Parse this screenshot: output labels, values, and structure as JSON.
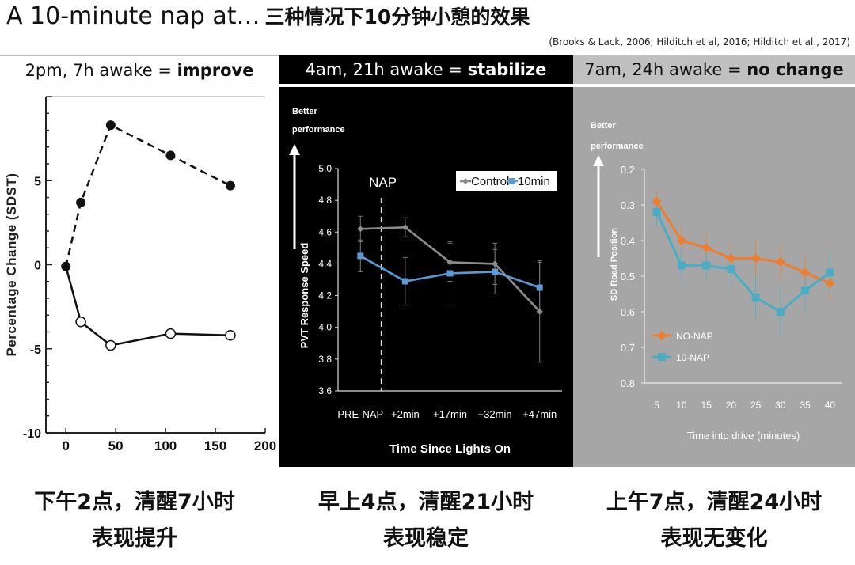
{
  "title": {
    "main": "A 10-minute nap at…",
    "zh": "三种情况下10分钟小憩的效果"
  },
  "references": "(Brooks & Lack, 2006; Hilditch et al, 2016; Hilditch et al., 2017)",
  "headers": [
    {
      "prefix": "2pm, 7h awake = ",
      "bold": "improve"
    },
    {
      "prefix": "4am, 21h awake = ",
      "bold": "stabilize"
    },
    {
      "prefix": "7am, 24h awake = ",
      "bold": "no change"
    }
  ],
  "captions": [
    {
      "line1": "下午2点，清醒7小时",
      "line2": "表现提升"
    },
    {
      "line1": "早上4点，清醒21小时",
      "line2": "表现稳定"
    },
    {
      "line1": "上午7点，清醒24小时",
      "line2": "表现无变化"
    }
  ],
  "chart_data": [
    {
      "type": "line",
      "title": "",
      "xlabel": "",
      "ylabel": "Percentage Change (SDST)",
      "xlim": [
        -20,
        200
      ],
      "ylim": [
        -10,
        10
      ],
      "xticks": [
        "0",
        "50",
        "100",
        "150",
        "200"
      ],
      "xtick_values": [
        0,
        50,
        100,
        150,
        200
      ],
      "yticks": [
        "-10",
        "-5",
        "0",
        "5"
      ],
      "ytick_values": [
        -10,
        -5,
        0,
        5
      ],
      "series": [
        {
          "style": "dashed-filled",
          "x": [
            0,
            15,
            45,
            105,
            165
          ],
          "y": [
            -0.1,
            3.7,
            8.3,
            6.5,
            4.7
          ]
        },
        {
          "style": "solid-open",
          "x": [
            15,
            45,
            105,
            165
          ],
          "y": [
            -3.4,
            -4.8,
            -4.1,
            -4.2
          ]
        }
      ],
      "solid_start": {
        "x": 0,
        "y": -0.1
      }
    },
    {
      "type": "line",
      "title": "",
      "xlabel": "Time Since Lights On",
      "ylabel": "PVT Response Speed",
      "annotation_top": "Better performance",
      "nap_label": "NAP",
      "categories": [
        "PRE-NAP",
        "+2min",
        "+17min",
        "+32min",
        "+47min"
      ],
      "ylim": [
        3.6,
        5.0
      ],
      "yticks": [
        "3.6",
        "3.8",
        "4.0",
        "4.2",
        "4.4",
        "4.6",
        "4.8",
        "5.0"
      ],
      "ytick_values": [
        3.6,
        3.8,
        4.0,
        4.2,
        4.4,
        4.6,
        4.8,
        5.0
      ],
      "legend_position": "top-right",
      "series": [
        {
          "name": "Control",
          "color": "#8c8c8c",
          "values": [
            4.62,
            4.63,
            4.41,
            4.4,
            4.1
          ],
          "errors": [
            0.08,
            0.06,
            0.12,
            0.13,
            0.32
          ]
        },
        {
          "name": "10min",
          "color": "#5b9bd5",
          "values": [
            4.45,
            4.29,
            4.34,
            4.35,
            4.25
          ],
          "errors": [
            0.1,
            0.15,
            0.2,
            0.14,
            0.16
          ]
        }
      ]
    },
    {
      "type": "line",
      "title": "",
      "xlabel": "Time into drive (minutes)",
      "ylabel": "SD Road Position",
      "annotation_top": "Better performance",
      "y_inverted": true,
      "x": [
        5,
        10,
        15,
        20,
        25,
        30,
        35,
        40
      ],
      "xticks": [
        "5",
        "10",
        "15",
        "20",
        "25",
        "30",
        "35",
        "40"
      ],
      "ylim": [
        0.2,
        0.8
      ],
      "yticks": [
        "0.2",
        "0.3",
        "0.4",
        "0.5",
        "0.6",
        "0.7",
        "0.8"
      ],
      "ytick_values": [
        0.2,
        0.3,
        0.4,
        0.5,
        0.6,
        0.7,
        0.8
      ],
      "legend_position": "bottom-left",
      "series": [
        {
          "name": "NO-NAP",
          "color": "#ed7d31",
          "values": [
            0.29,
            0.4,
            0.42,
            0.45,
            0.45,
            0.46,
            0.49,
            0.52
          ],
          "errors": [
            0.03,
            0.04,
            0.04,
            0.04,
            0.05,
            0.05,
            0.05,
            0.05
          ]
        },
        {
          "name": "10-NAP",
          "color": "#4bacc6",
          "values": [
            0.32,
            0.47,
            0.47,
            0.48,
            0.56,
            0.6,
            0.54,
            0.49
          ],
          "errors": [
            0.04,
            0.05,
            0.04,
            0.05,
            0.06,
            0.07,
            0.06,
            0.06
          ]
        }
      ]
    }
  ]
}
